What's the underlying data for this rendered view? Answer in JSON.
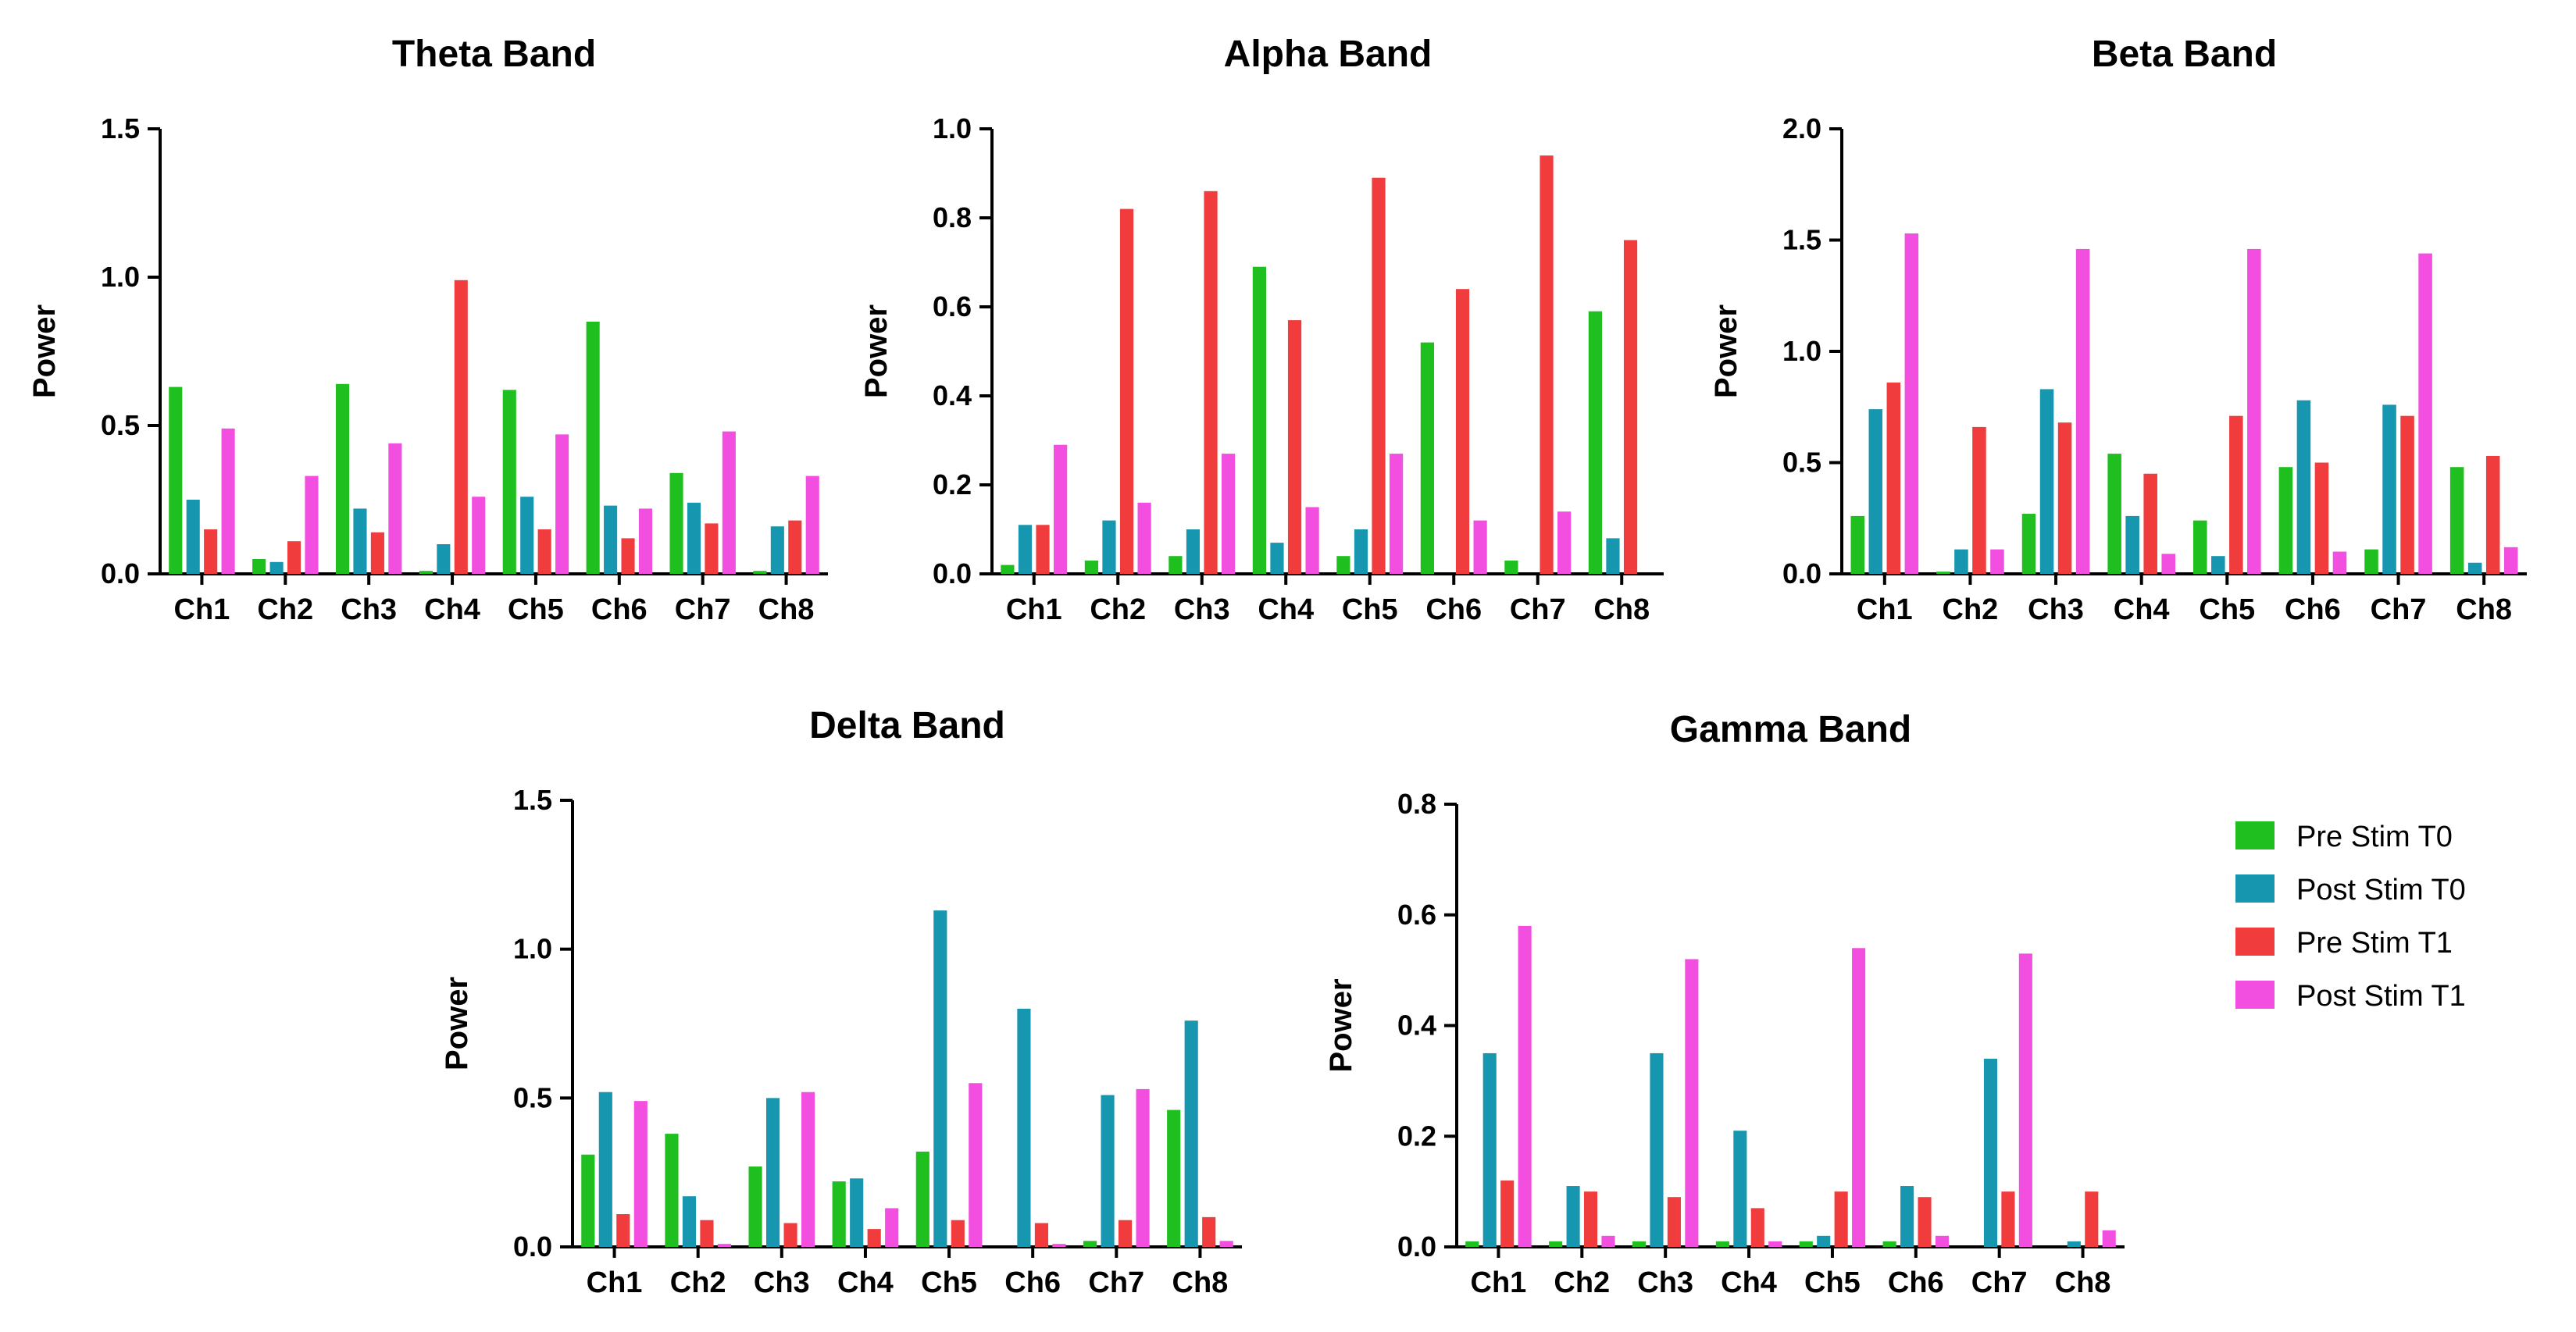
{
  "legend": [
    {
      "name": "Pre Stim T0",
      "color": "#1fbf1f"
    },
    {
      "name": "Post Stim T0",
      "color": "#1796b0"
    },
    {
      "name": "Pre Stim T1",
      "color": "#f03c3c"
    },
    {
      "name": "Post Stim T1",
      "color": "#f24fe0"
    }
  ],
  "chart_data": [
    {
      "id": "theta",
      "type": "bar",
      "title": "Theta Band",
      "ylabel": "Power",
      "xlabel": "",
      "ylim": [
        0,
        1.5
      ],
      "yticks": [
        "0.0",
        "0.5",
        "1.0",
        "1.5"
      ],
      "categories": [
        "Ch1",
        "Ch2",
        "Ch3",
        "Ch4",
        "Ch5",
        "Ch6",
        "Ch7",
        "Ch8"
      ],
      "series": [
        {
          "name": "Pre Stim T0",
          "values": [
            0.63,
            0.05,
            0.64,
            0.01,
            0.62,
            0.85,
            0.34,
            0.01
          ]
        },
        {
          "name": "Post Stim T0",
          "values": [
            0.25,
            0.04,
            0.22,
            0.1,
            0.26,
            0.23,
            0.24,
            0.16
          ]
        },
        {
          "name": "Pre Stim T1",
          "values": [
            0.15,
            0.11,
            0.14,
            0.99,
            0.15,
            0.12,
            0.17,
            0.18
          ]
        },
        {
          "name": "Post Stim T1",
          "values": [
            0.49,
            0.33,
            0.44,
            0.26,
            0.47,
            0.22,
            0.48,
            0.33
          ]
        }
      ]
    },
    {
      "id": "alpha",
      "type": "bar",
      "title": "Alpha Band",
      "ylabel": "Power",
      "xlabel": "",
      "ylim": [
        0,
        1.0
      ],
      "yticks": [
        "0.0",
        "0.2",
        "0.4",
        "0.6",
        "0.8",
        "1.0"
      ],
      "categories": [
        "Ch1",
        "Ch2",
        "Ch3",
        "Ch4",
        "Ch5",
        "Ch6",
        "Ch7",
        "Ch8"
      ],
      "series": [
        {
          "name": "Pre Stim T0",
          "values": [
            0.02,
            0.03,
            0.04,
            0.69,
            0.04,
            0.52,
            0.03,
            0.59
          ]
        },
        {
          "name": "Post Stim T0",
          "values": [
            0.11,
            0.12,
            0.1,
            0.07,
            0.1,
            0.0,
            0.0,
            0.08
          ]
        },
        {
          "name": "Pre Stim T1",
          "values": [
            0.11,
            0.82,
            0.86,
            0.57,
            0.89,
            0.64,
            0.94,
            0.75
          ]
        },
        {
          "name": "Post Stim T1",
          "values": [
            0.29,
            0.16,
            0.27,
            0.15,
            0.27,
            0.12,
            0.14,
            0.0
          ]
        }
      ]
    },
    {
      "id": "beta",
      "type": "bar",
      "title": "Beta Band",
      "ylabel": "Power",
      "xlabel": "",
      "ylim": [
        0,
        2.0
      ],
      "yticks": [
        "0.0",
        "0.5",
        "1.0",
        "1.5",
        "2.0"
      ],
      "categories": [
        "Ch1",
        "Ch2",
        "Ch3",
        "Ch4",
        "Ch5",
        "Ch6",
        "Ch7",
        "Ch8"
      ],
      "series": [
        {
          "name": "Pre Stim T0",
          "values": [
            0.26,
            0.01,
            0.27,
            0.54,
            0.24,
            0.48,
            0.11,
            0.48
          ]
        },
        {
          "name": "Post Stim T0",
          "values": [
            0.74,
            0.11,
            0.83,
            0.26,
            0.08,
            0.78,
            0.76,
            0.05
          ]
        },
        {
          "name": "Pre Stim T1",
          "values": [
            0.86,
            0.66,
            0.68,
            0.45,
            0.71,
            0.5,
            0.71,
            0.53
          ]
        },
        {
          "name": "Post Stim T1",
          "values": [
            1.53,
            0.11,
            1.46,
            0.09,
            1.46,
            0.1,
            1.44,
            0.12
          ]
        }
      ]
    },
    {
      "id": "delta",
      "type": "bar",
      "title": "Delta Band",
      "ylabel": "Power",
      "xlabel": "",
      "ylim": [
        0,
        1.5
      ],
      "yticks": [
        "0.0",
        "0.5",
        "1.0",
        "1.5"
      ],
      "categories": [
        "Ch1",
        "Ch2",
        "Ch3",
        "Ch4",
        "Ch5",
        "Ch6",
        "Ch7",
        "Ch8"
      ],
      "series": [
        {
          "name": "Pre Stim T0",
          "values": [
            0.31,
            0.38,
            0.27,
            0.22,
            0.32,
            0.0,
            0.02,
            0.46
          ]
        },
        {
          "name": "Post Stim T0",
          "values": [
            0.52,
            0.17,
            0.5,
            0.23,
            1.13,
            0.8,
            0.51,
            0.76
          ]
        },
        {
          "name": "Pre Stim T1",
          "values": [
            0.11,
            0.09,
            0.08,
            0.06,
            0.09,
            0.08,
            0.09,
            0.1
          ]
        },
        {
          "name": "Post Stim T1",
          "values": [
            0.49,
            0.01,
            0.52,
            0.13,
            0.55,
            0.01,
            0.53,
            0.02
          ]
        }
      ]
    },
    {
      "id": "gamma",
      "type": "bar",
      "title": "Gamma Band",
      "ylabel": "Power",
      "xlabel": "",
      "ylim": [
        0,
        0.8
      ],
      "yticks": [
        "0.0",
        "0.2",
        "0.4",
        "0.6",
        "0.8"
      ],
      "categories": [
        "Ch1",
        "Ch2",
        "Ch3",
        "Ch4",
        "Ch5",
        "Ch6",
        "Ch7",
        "Ch8"
      ],
      "series": [
        {
          "name": "Pre Stim T0",
          "values": [
            0.01,
            0.01,
            0.01,
            0.01,
            0.01,
            0.01,
            0.0,
            0.0
          ]
        },
        {
          "name": "Post Stim T0",
          "values": [
            0.35,
            0.11,
            0.35,
            0.21,
            0.02,
            0.11,
            0.34,
            0.01
          ]
        },
        {
          "name": "Pre Stim T1",
          "values": [
            0.12,
            0.1,
            0.09,
            0.07,
            0.1,
            0.09,
            0.1,
            0.1
          ]
        },
        {
          "name": "Post Stim T1",
          "values": [
            0.58,
            0.02,
            0.52,
            0.01,
            0.54,
            0.02,
            0.53,
            0.03
          ]
        }
      ]
    }
  ]
}
